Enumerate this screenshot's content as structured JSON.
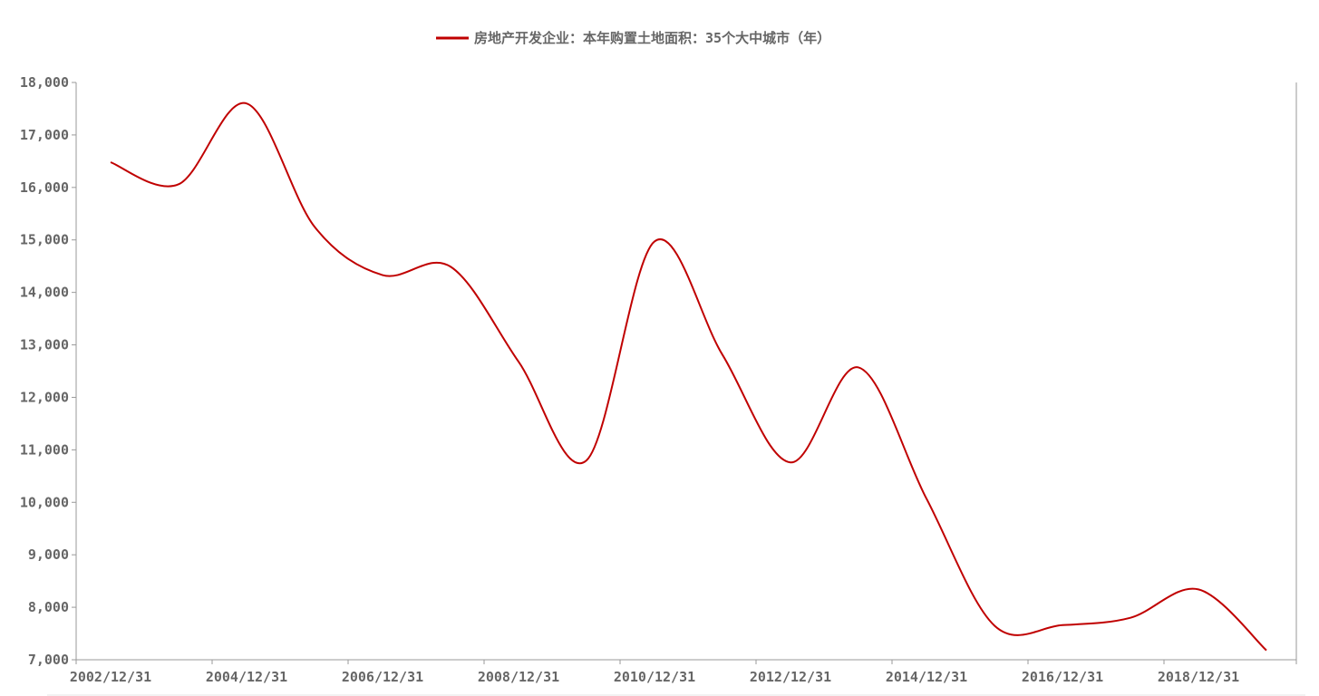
{
  "chart_data": {
    "type": "line",
    "title": "",
    "xlabel": "",
    "ylabel": "",
    "x": [
      "2002/12/31",
      "2003/12/31",
      "2004/12/31",
      "2005/12/31",
      "2006/12/31",
      "2007/12/31",
      "2008/12/31",
      "2009/12/31",
      "2010/12/31",
      "2011/12/31",
      "2012/12/31",
      "2013/12/31",
      "2014/12/31",
      "2015/12/31",
      "2016/12/31",
      "2017/12/31",
      "2018/12/31",
      "2019/12/31"
    ],
    "x_tick_labels": [
      "2002/12/31",
      "2004/12/31",
      "2006/12/31",
      "2008/12/31",
      "2010/12/31",
      "2012/12/31",
      "2014/12/31",
      "2016/12/31",
      "2018/12/31"
    ],
    "y_tick_labels": [
      "7,000",
      "8,000",
      "9,000",
      "10,000",
      "11,000",
      "12,000",
      "13,000",
      "14,000",
      "15,000",
      "16,000",
      "17,000",
      "18,000"
    ],
    "ylim": [
      7000,
      18000
    ],
    "grid": false,
    "legend_position": "top-center",
    "series": [
      {
        "name": "房地产开发企业：本年购置土地面积：35个大中城市（年）",
        "color": "#c00000",
        "values": [
          16480,
          16060,
          17600,
          15250,
          14330,
          14490,
          12680,
          10800,
          14970,
          12810,
          10760,
          12570,
          10070,
          7650,
          7660,
          7800,
          8340,
          7180
        ]
      }
    ]
  }
}
